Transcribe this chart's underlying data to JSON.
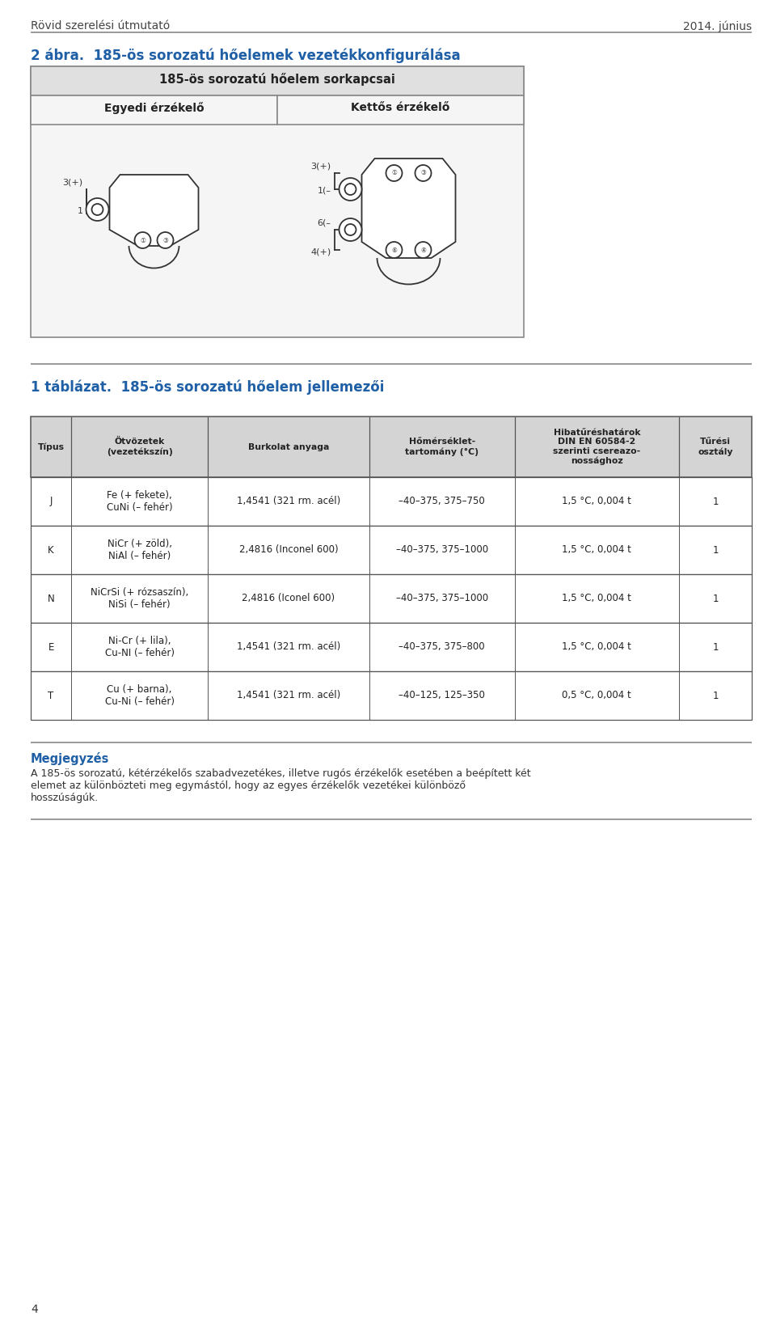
{
  "page_bg": "#ffffff",
  "header_left": "Rövid szerelési útmutató",
  "header_right": "2014. június",
  "header_color": "#444444",
  "fig_title": "2 ábra.  185-ös sorozatú hőelemek vezetékkonfigurálása",
  "fig_title_color": "#1f5fa6",
  "table1_header": "185-ös sorozatú hőelem sorkapcsai",
  "table1_col1": "Egyedi érzékelő",
  "table1_col2": "Kettős érzékelő",
  "table2_title": "1 táblázat.  185-ös sorozatú hőelem jellemezői",
  "table2_title_color": "#1f5fa6",
  "col_headers": [
    "Típus",
    "Ötvözetek\n(vezetékszín)",
    "Burkolat anyaga",
    "Hőmérséklet-\ntartomány (°C)",
    "Hibatűréshatatárok\nDIN EN 60584-2\nszerinti csereazo-\nnossághoz",
    "Tűrési\noszтály"
  ],
  "rows": [
    [
      "J",
      "Fe (+ fekete),\nCuNi (– fehér)",
      "1,4541 (321 rm. acél)",
      "–40–375, 375–750",
      "1,5 °C, 0,004 t",
      "1"
    ],
    [
      "K",
      "NiCr (+ zöld),\nNiAl (– fehér)",
      "2,4816 (Inconel 600)",
      "–40–375, 375–1000",
      "1,5 °C, 0,004 t",
      "1"
    ],
    [
      "N",
      "NiCrSi (+ rózsaszín),\nNiSi (– fehér)",
      "2,4816 (Iconel 600)",
      "–40–375, 375–1000",
      "1,5 °C, 0,004 t",
      "1"
    ],
    [
      "E",
      "Ni-Cr (+ lila),\nCu-NI (– fehér)",
      "1,4541 (321 rm. acél)",
      "–40–375, 375–800",
      "1,5 °C, 0,004 t",
      "1"
    ],
    [
      "T",
      "Cu (+ barna),\nCu-Ni (– fehér)",
      "1,4541 (321 rm. acél)",
      "–40–125, 125–350",
      "0,5 °C, 0,004 t",
      "1"
    ]
  ],
  "note_title": "Megjegyzés",
  "note_title_color": "#1f5fa6",
  "note_text": "A 185-ös sorozatú, kétérzékelős szabadvezetékes, illetve rugós érzékelők esetében a beépített két\nelemet az különbözteti meg egymástól, hogy az egyes érzékelők vezetékei különböző\nhosszúságúk.",
  "footer_page": "4",
  "table_header_bg": "#d4d4d4",
  "table_border_color": "#555555",
  "text_color": "#333333",
  "lc_color": "#333333",
  "diagram_lw": 1.3
}
